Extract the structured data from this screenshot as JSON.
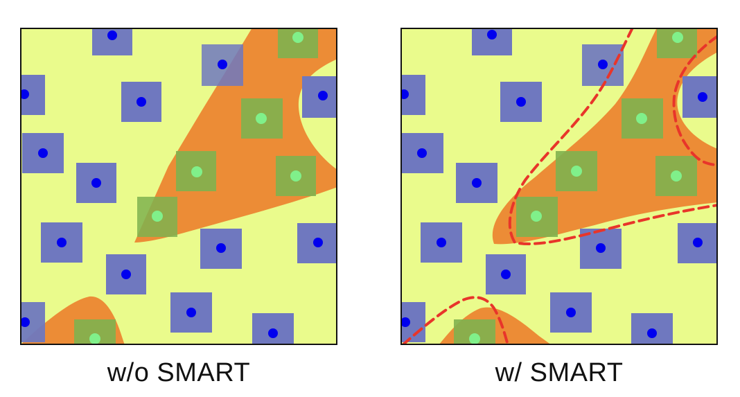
{
  "panels": {
    "left": {
      "caption": "w/o SMART"
    },
    "right": {
      "caption": "w/ SMART"
    }
  },
  "colors": {
    "background_region": "#eafb8c",
    "decision_region": "#ec8c36",
    "class_a_square": "#6f78bf",
    "class_a_dot": "#0000ee",
    "class_b_square": "#7fb14f",
    "class_b_dot": "#80f08a",
    "boundary": "#e8352a",
    "frame": "#111111"
  },
  "legend_icons": [
    "blue-sample-icon",
    "green-sample-icon"
  ]
}
